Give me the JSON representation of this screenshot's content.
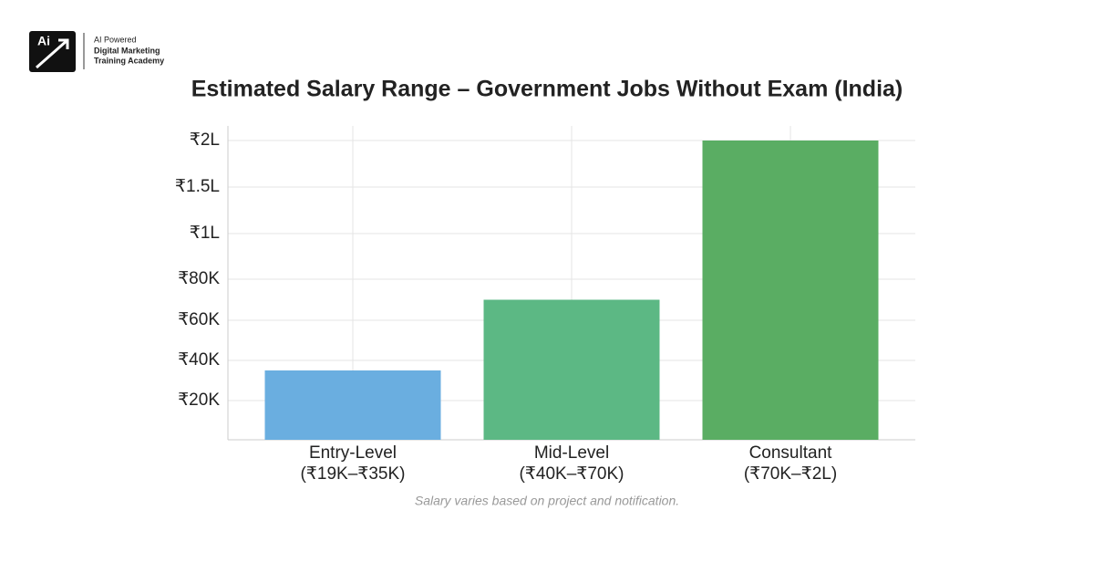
{
  "header": {
    "logo": "Ai",
    "lines": [
      "AI Powered",
      "Digital Marketing",
      "Training Academy"
    ]
  },
  "chart_data": {
    "type": "bar",
    "title": "Estimated Salary Range – Government Jobs Without Exam (India)",
    "categories": [
      "Entry-Level",
      "Mid-Level",
      "Consultant"
    ],
    "ranges": [
      "(₹19K–₹35K)",
      "(₹40K–₹70K)",
      "(₹70K–₹2L)"
    ],
    "values": [
      35000,
      70000,
      200000
    ],
    "colors": [
      "#6aaee0",
      "#5cb884",
      "#5aad63"
    ],
    "ylim": [
      0,
      200000
    ],
    "yticks": [
      {
        "value": 20000,
        "label": "₹20K"
      },
      {
        "value": 40000,
        "label": "₹40K"
      },
      {
        "value": 60000,
        "label": "₹60K"
      },
      {
        "value": 80000,
        "label": "₹80K"
      },
      {
        "value": 100000,
        "label": "₹1L"
      },
      {
        "value": 150000,
        "label": "₹1.5L"
      },
      {
        "value": 200000,
        "label": "₹2L"
      }
    ],
    "grid": true,
    "note": "Salary varies based on project and notification."
  }
}
